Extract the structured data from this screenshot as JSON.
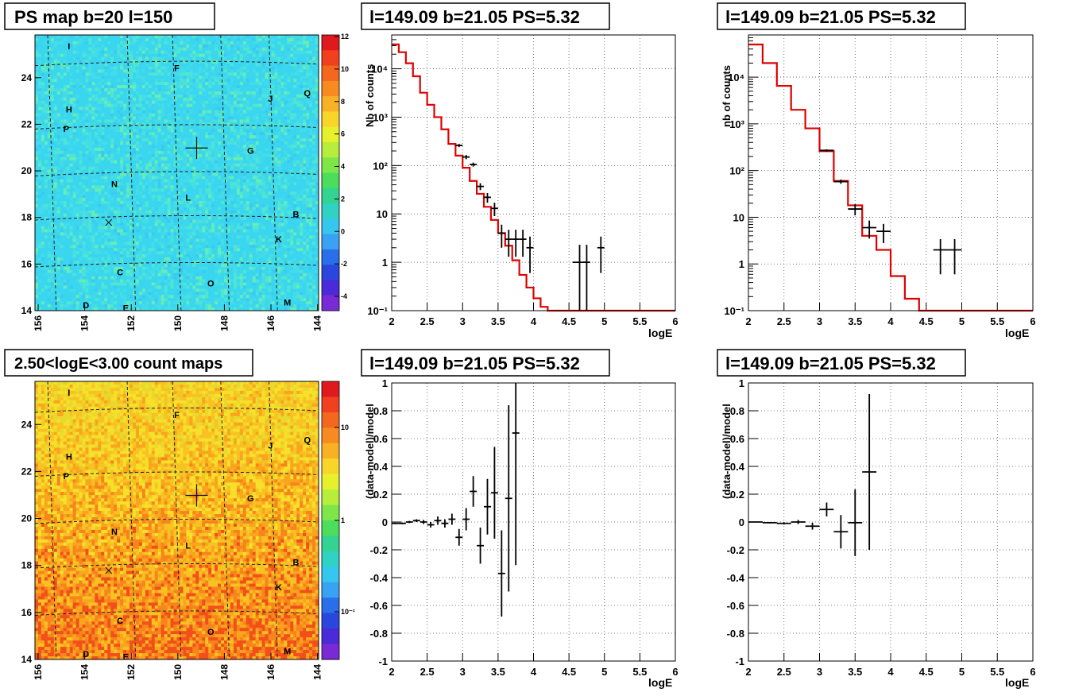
{
  "maps": [
    {
      "title": "PS map b=20 l=150",
      "scale": "linear",
      "z_ticks": [
        "12",
        "10",
        "8",
        "6",
        "4",
        "2",
        "0",
        "-2",
        "-4"
      ],
      "x_ticks": [
        "156",
        "154",
        "152",
        "150",
        "148",
        "146",
        "144"
      ],
      "y_ticks": [
        "24",
        "22",
        "20",
        "18",
        "16",
        "14"
      ],
      "labels": [
        "I",
        "F",
        "H",
        "J",
        "Q",
        "P",
        "G",
        "N",
        "L",
        "B",
        "K",
        "C",
        "O",
        "D",
        "E",
        "M"
      ],
      "palette": [
        "#3ad6f0",
        "#43dce8",
        "#4ee6d2",
        "#66ecb8",
        "#3bc9f4"
      ]
    },
    {
      "title": "2.50<logE<3.00 count maps",
      "scale": "log",
      "z_ticks": [
        "10",
        "1",
        "10⁻¹"
      ],
      "x_ticks": [
        "156",
        "154",
        "152",
        "150",
        "148",
        "146",
        "144"
      ],
      "y_ticks": [
        "24",
        "22",
        "20",
        "18",
        "16",
        "14"
      ],
      "labels": [
        "I",
        "F",
        "H",
        "J",
        "Q",
        "P",
        "G",
        "N",
        "L",
        "B",
        "K",
        "C",
        "O",
        "D",
        "E",
        "M"
      ],
      "palette": [
        "#f6e02a",
        "#f8c222",
        "#f9a51e",
        "#f7841c",
        "#f2501a",
        "#e9d92e"
      ]
    }
  ],
  "chart_data": [
    {
      "type": "step+errorbar",
      "title": "l=149.09 b=21.05 PS=5.32",
      "xlabel": "logE",
      "ylabel": "Nb of counts",
      "xlim": [
        2,
        6
      ],
      "ylim": [
        0.1,
        50000
      ],
      "yscale": "log",
      "x_ticks": [
        "2",
        "2.5",
        "3",
        "3.5",
        "4",
        "4.5",
        "5",
        "5.5",
        "6"
      ],
      "y_ticks": [
        "10⁻¹",
        "1",
        "10",
        "10²",
        "10³",
        "10⁴"
      ],
      "model_step": {
        "edges": [
          2.0,
          2.1,
          2.2,
          2.3,
          2.4,
          2.5,
          2.6,
          2.7,
          2.8,
          2.9,
          3.0,
          3.1,
          3.2,
          3.3,
          3.4,
          3.5,
          3.6,
          3.7,
          3.8,
          3.9,
          4.0,
          4.1,
          4.2,
          4.3,
          6.0
        ],
        "values": [
          32000,
          22000,
          13000,
          7000,
          3200,
          1800,
          1000,
          560,
          280,
          160,
          90,
          48,
          26,
          14,
          7.5,
          4,
          2.2,
          1.1,
          0.55,
          0.3,
          0.18,
          0.12,
          0.1,
          0.1
        ]
      },
      "points": [
        {
          "x": 2.95,
          "y": 260,
          "dx": 0.05,
          "lo": 240,
          "hi": 280
        },
        {
          "x": 3.05,
          "y": 150,
          "dx": 0.05,
          "lo": 135,
          "hi": 165
        },
        {
          "x": 3.15,
          "y": 105,
          "dx": 0.05,
          "lo": 95,
          "hi": 115
        },
        {
          "x": 3.25,
          "y": 37,
          "dx": 0.05,
          "lo": 31,
          "hi": 43
        },
        {
          "x": 3.35,
          "y": 22,
          "dx": 0.05,
          "lo": 17,
          "hi": 27
        },
        {
          "x": 3.45,
          "y": 13,
          "dx": 0.05,
          "lo": 9,
          "hi": 17
        },
        {
          "x": 3.55,
          "y": 4,
          "dx": 0.05,
          "lo": 2,
          "hi": 6
        },
        {
          "x": 3.65,
          "y": 3,
          "dx": 0.05,
          "lo": 1.3,
          "hi": 4.7
        },
        {
          "x": 3.75,
          "y": 3,
          "dx": 0.05,
          "lo": 1.3,
          "hi": 4.7
        },
        {
          "x": 3.85,
          "y": 3,
          "dx": 0.05,
          "lo": 1.3,
          "hi": 4.7
        },
        {
          "x": 3.95,
          "y": 2,
          "dx": 0.05,
          "lo": 0.6,
          "hi": 3.4
        },
        {
          "x": 4.65,
          "y": 1,
          "dx": 0.1,
          "lo": 0.1,
          "hi": 2.3
        },
        {
          "x": 4.75,
          "y": 1,
          "dx": 0.05,
          "lo": 0.1,
          "hi": 2.3
        },
        {
          "x": 4.95,
          "y": 2,
          "dx": 0.05,
          "lo": 0.6,
          "hi": 3.4
        }
      ]
    },
    {
      "type": "step+errorbar",
      "title": "l=149.09 b=21.05 PS=5.32",
      "xlabel": "logE",
      "ylabel": "nb of counts",
      "xlim": [
        2,
        6
      ],
      "ylim": [
        0.1,
        80000
      ],
      "yscale": "log",
      "x_ticks": [
        "2",
        "2.5",
        "3",
        "3.5",
        "4",
        "4.5",
        "5",
        "5.5",
        "6"
      ],
      "y_ticks": [
        "10⁻¹",
        "1",
        "10",
        "10²",
        "10³",
        "10⁴"
      ],
      "model_step": {
        "edges": [
          2.0,
          2.2,
          2.4,
          2.6,
          2.8,
          3.0,
          3.2,
          3.4,
          3.6,
          3.8,
          4.0,
          4.2,
          4.4,
          6.0
        ],
        "values": [
          50000,
          20000,
          6500,
          2000,
          800,
          260,
          60,
          18,
          4,
          2,
          0.55,
          0.18,
          0.1
        ]
      },
      "points": [
        {
          "x": 3.1,
          "y": 270,
          "dx": 0.1,
          "lo": 255,
          "hi": 285
        },
        {
          "x": 3.3,
          "y": 58,
          "dx": 0.1,
          "lo": 52,
          "hi": 64
        },
        {
          "x": 3.5,
          "y": 15,
          "dx": 0.1,
          "lo": 11,
          "hi": 19
        },
        {
          "x": 3.7,
          "y": 6,
          "dx": 0.1,
          "lo": 3.5,
          "hi": 8.5
        },
        {
          "x": 3.9,
          "y": 5,
          "dx": 0.1,
          "lo": 2.8,
          "hi": 7.2
        },
        {
          "x": 4.7,
          "y": 2,
          "dx": 0.1,
          "lo": 0.6,
          "hi": 3.4
        },
        {
          "x": 4.9,
          "y": 2,
          "dx": 0.1,
          "lo": 0.6,
          "hi": 3.4
        }
      ]
    },
    {
      "type": "errorbar",
      "title": "l=149.09 b=21.05 PS=5.32",
      "xlabel": "logE",
      "ylabel": "(data-model)/model",
      "xlim": [
        2,
        6
      ],
      "ylim": [
        -1,
        1
      ],
      "x_ticks": [
        "2",
        "2.5",
        "3",
        "3.5",
        "4",
        "4.5",
        "5",
        "5.5",
        "6"
      ],
      "y_ticks": [
        "1",
        "0.8",
        "0.6",
        "0.4",
        "0.2",
        "0",
        "-0.2",
        "-0.4",
        "-0.6",
        "-0.8",
        "-1"
      ],
      "points": [
        {
          "x": 2.05,
          "y": -0.01,
          "dx": 0.05,
          "err": 0.005
        },
        {
          "x": 2.15,
          "y": -0.01,
          "dx": 0.05,
          "err": 0.006
        },
        {
          "x": 2.25,
          "y": 0.0,
          "dx": 0.05,
          "err": 0.008
        },
        {
          "x": 2.35,
          "y": 0.01,
          "dx": 0.05,
          "err": 0.01
        },
        {
          "x": 2.45,
          "y": 0.0,
          "dx": 0.05,
          "err": 0.015
        },
        {
          "x": 2.55,
          "y": -0.02,
          "dx": 0.05,
          "err": 0.02
        },
        {
          "x": 2.65,
          "y": 0.01,
          "dx": 0.05,
          "err": 0.03
        },
        {
          "x": 2.75,
          "y": -0.01,
          "dx": 0.05,
          "err": 0.03
        },
        {
          "x": 2.85,
          "y": 0.02,
          "dx": 0.05,
          "err": 0.04
        },
        {
          "x": 2.95,
          "y": -0.11,
          "dx": 0.05,
          "err": 0.06
        },
        {
          "x": 3.05,
          "y": 0.02,
          "dx": 0.05,
          "err": 0.08
        },
        {
          "x": 3.15,
          "y": 0.22,
          "dx": 0.05,
          "err": 0.11
        },
        {
          "x": 3.25,
          "y": -0.17,
          "dx": 0.05,
          "err": 0.13
        },
        {
          "x": 3.35,
          "y": 0.11,
          "dx": 0.05,
          "err": 0.2
        },
        {
          "x": 3.45,
          "y": 0.21,
          "dx": 0.05,
          "err": 0.33
        },
        {
          "x": 3.55,
          "y": -0.37,
          "dx": 0.05,
          "err": 0.31
        },
        {
          "x": 3.65,
          "y": 0.17,
          "dx": 0.05,
          "err": 0.67
        },
        {
          "x": 3.75,
          "y": 0.64,
          "dx": 0.05,
          "err": 0.95
        }
      ]
    },
    {
      "type": "errorbar",
      "title": "l=149.09 b=21.05 PS=5.32",
      "xlabel": "logE",
      "ylabel": "(data-model)/model",
      "xlim": [
        2,
        6
      ],
      "ylim": [
        -1,
        1
      ],
      "x_ticks": [
        "2",
        "2.5",
        "3",
        "3.5",
        "4",
        "4.5",
        "5",
        "5.5",
        "6"
      ],
      "y_ticks": [
        "1",
        "0.8",
        "0.6",
        "0.4",
        "0.2",
        "0",
        "-0.2",
        "-0.4",
        "-0.6",
        "-0.8",
        "-1"
      ],
      "points": [
        {
          "x": 2.1,
          "y": 0.0,
          "dx": 0.1,
          "err": 0.003
        },
        {
          "x": 2.3,
          "y": -0.005,
          "dx": 0.1,
          "err": 0.005
        },
        {
          "x": 2.5,
          "y": -0.01,
          "dx": 0.1,
          "err": 0.008
        },
        {
          "x": 2.7,
          "y": 0.0,
          "dx": 0.1,
          "err": 0.015
        },
        {
          "x": 2.9,
          "y": -0.03,
          "dx": 0.1,
          "err": 0.025
        },
        {
          "x": 3.1,
          "y": 0.09,
          "dx": 0.1,
          "err": 0.05
        },
        {
          "x": 3.3,
          "y": -0.07,
          "dx": 0.1,
          "err": 0.12
        },
        {
          "x": 3.5,
          "y": -0.005,
          "dx": 0.1,
          "err": 0.24
        },
        {
          "x": 3.7,
          "y": 0.36,
          "dx": 0.1,
          "err": 0.56
        }
      ]
    }
  ]
}
